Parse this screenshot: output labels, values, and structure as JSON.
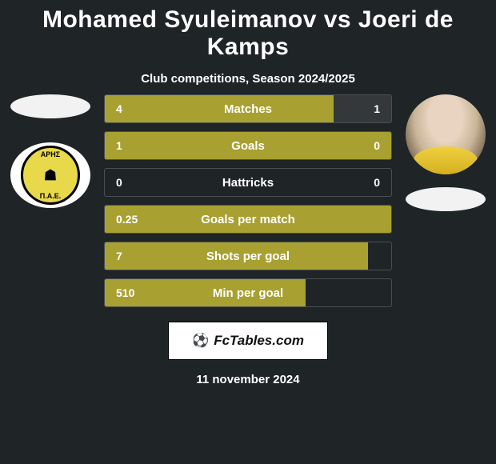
{
  "title": "Mohamed Syuleimanov vs Joeri de Kamps",
  "subtitle": "Club competitions, Season 2024/2025",
  "date": "11 november 2024",
  "footer_brand": "FcTables.com",
  "footer_icon": "⚽",
  "left_club": {
    "top_text": "ΑΡΗΣ",
    "bottom_text": "Π.Α.Ε."
  },
  "colors": {
    "bar_left": "#a8a031",
    "bar_right": "#34383b",
    "title": "#ffffff",
    "background": "#1f2427"
  },
  "stats": [
    {
      "label": "Matches",
      "left_val": "4",
      "right_val": "1",
      "left_pct": 80,
      "right_pct": 20
    },
    {
      "label": "Goals",
      "left_val": "1",
      "right_val": "0",
      "left_pct": 100,
      "right_pct": 0
    },
    {
      "label": "Hattricks",
      "left_val": "0",
      "right_val": "0",
      "left_pct": 0,
      "right_pct": 0
    },
    {
      "label": "Goals per match",
      "left_val": "0.25",
      "right_val": "",
      "left_pct": 100,
      "right_pct": 0
    },
    {
      "label": "Shots per goal",
      "left_val": "7",
      "right_val": "",
      "left_pct": 92,
      "right_pct": 0
    },
    {
      "label": "Min per goal",
      "left_val": "510",
      "right_val": "",
      "left_pct": 70,
      "right_pct": 0
    }
  ]
}
